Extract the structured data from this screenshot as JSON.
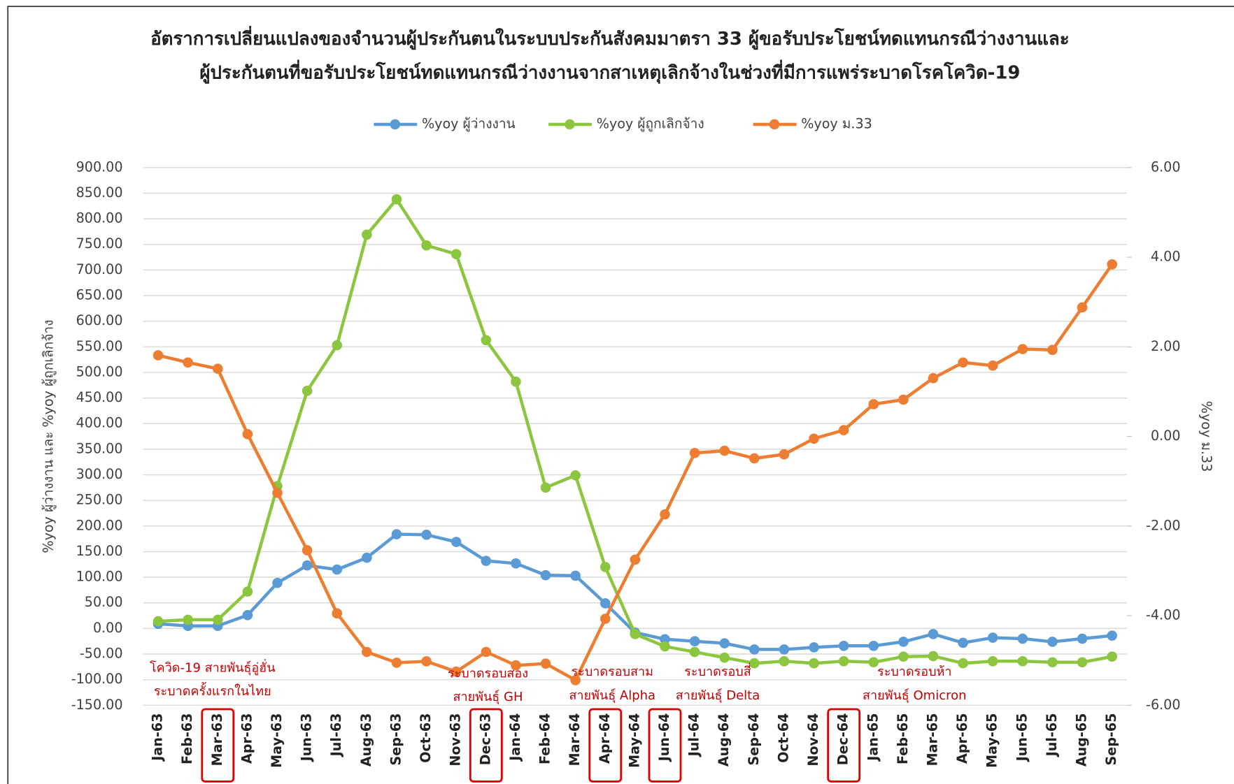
{
  "chart_data": {
    "type": "line",
    "title": [
      "อัตราการเปลี่ยนแปลงของจำนวนผู้ประกันตนในระบบประกันสังคมมาตรา  33 ผู้ขอรับประโยชน์ทดแทนกรณีว่างงานและ",
      "ผู้ประกันตนที่ขอรับประโยชน์ทดแทนกรณีว่างงานจากสาเหตุเลิกจ้างในช่วงที่มีการแพร่ระบาดโรคโควิด-19"
    ],
    "y_label": "%yoy ผู้ว่างงาน และ %yoy ผู้ถูกเลิกจ้าง",
    "y2_label": "%yoy ม.33",
    "categories": [
      "Jan-63",
      "Feb-63",
      "Mar-63",
      "Apr-63",
      "May-63",
      "Jun-63",
      "Jul-63",
      "Aug-63",
      "Sep-63",
      "Oct-63",
      "Nov-63",
      "Dec-63",
      "Jan-64",
      "Feb-64",
      "Mar-64",
      "Apr-64",
      "May-64",
      "Jun-64",
      "Jul-64",
      "Aug-64",
      "Sep-64",
      "Oct-64",
      "Nov-64",
      "Dec-64",
      "Jan-65",
      "Feb-65",
      "Mar-65",
      "Apr-65",
      "May-65",
      "Jun-65",
      "Jul-65",
      "Aug-65",
      "Sep-65"
    ],
    "highlighted": [
      "Mar-63",
      "Dec-63",
      "Apr-64",
      "Jun-64",
      "Dec-64"
    ],
    "series": [
      {
        "name": "%yoy ผู้ว่างงาน",
        "color": "#5b9bd5",
        "values": [
          9,
          5,
          5,
          26,
          89,
          123,
          115,
          138,
          184,
          183,
          169,
          132,
          127,
          104,
          103,
          49,
          -8,
          -21,
          -25,
          -29,
          -41,
          -41,
          -37,
          -34,
          -34,
          -26,
          -11,
          -28,
          -18,
          -20,
          -26,
          -20,
          -14
        ]
      },
      {
        "name": "%yoy ผู้ถูกเลิกจ้าง",
        "color": "#8cc63f",
        "values": [
          14,
          17,
          17,
          72,
          278,
          464,
          553,
          769,
          838,
          748,
          731,
          563,
          482,
          275,
          299,
          120,
          -11,
          -35,
          -46,
          -57,
          -68,
          -64,
          -68,
          -64,
          -66,
          -55,
          -54,
          -68,
          -64,
          -64,
          -66,
          -66,
          -55
        ]
      },
      {
        "name": "%yoy ม.33",
        "color": "#ed7d31",
        "axis": "y2",
        "values": [
          1.81,
          1.65,
          1.51,
          0.05,
          -1.26,
          -2.54,
          -3.95,
          -4.81,
          -5.05,
          -5.02,
          -5.25,
          -4.81,
          -5.11,
          -5.07,
          -5.44,
          -4.07,
          -2.75,
          -1.74,
          -0.37,
          -0.32,
          -0.49,
          -0.4,
          -0.05,
          0.14,
          0.72,
          0.82,
          1.3,
          1.65,
          1.58,
          1.95,
          1.93,
          2.88,
          3.84
        ]
      }
    ],
    "ylim": [
      -150,
      900
    ],
    "yticks": [
      {
        "value": -150,
        "label": "-150.00"
      },
      {
        "value": -100,
        "label": "-100.00"
      },
      {
        "value": -50,
        "label": "-50.00"
      },
      {
        "value": 0,
        "label": "0.00"
      },
      {
        "value": 50,
        "label": "50.00"
      },
      {
        "value": 100,
        "label": "100.00"
      },
      {
        "value": 150,
        "label": "150.00"
      },
      {
        "value": 200,
        "label": "200.00"
      },
      {
        "value": 250,
        "label": "250.00"
      },
      {
        "value": 300,
        "label": "300.00"
      },
      {
        "value": 350,
        "label": "350.00"
      },
      {
        "value": 400,
        "label": "400.00"
      },
      {
        "value": 450,
        "label": "450.00"
      },
      {
        "value": 500,
        "label": "500.00"
      },
      {
        "value": 550,
        "label": "550.00"
      },
      {
        "value": 600,
        "label": "600.00"
      },
      {
        "value": 650,
        "label": "650.00"
      },
      {
        "value": 700,
        "label": "700.00"
      },
      {
        "value": 750,
        "label": "750.00"
      },
      {
        "value": 800,
        "label": "800.00"
      },
      {
        "value": 850,
        "label": "850.00"
      },
      {
        "value": 900,
        "label": "900.00"
      }
    ],
    "y2lim": [
      -6,
      6
    ],
    "y2ticks": [
      {
        "value": -6,
        "label": "-6.00"
      },
      {
        "value": -4,
        "label": "-4.00"
      },
      {
        "value": -2,
        "label": "-2.00"
      },
      {
        "value": 0,
        "label": "0.00"
      },
      {
        "value": 2,
        "label": "2.00"
      },
      {
        "value": 4,
        "label": "4.00"
      },
      {
        "value": 6,
        "label": "6.00"
      }
    ],
    "grid": true,
    "legend": "top",
    "annotations": [
      [
        "โควิด-19 สายพันธุ์อู่ฮั่น",
        "ระบาดครั้งแรกในไทย"
      ],
      [
        "ระบาดรอบสอง",
        "สายพันธุ์ GH"
      ],
      [
        "ระบาดรอบสาม",
        "สายพันธุ์ Alpha"
      ],
      [
        "ระบาดรอบสี่",
        "สายพันธุ์ Delta"
      ],
      [
        "ระบาดรอบห้า",
        "สายพันธุ์ Omicron"
      ]
    ]
  }
}
